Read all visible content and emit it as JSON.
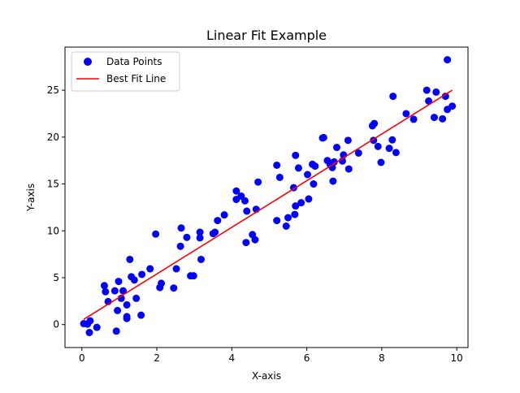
{
  "chart_data": {
    "type": "scatter",
    "title": "Linear Fit Example",
    "xlabel": "X-axis",
    "ylabel": "Y-axis",
    "xlim": [
      -0.45,
      10.3
    ],
    "ylim": [
      -2.45,
      29.6
    ],
    "xticks": [
      0,
      2,
      4,
      6,
      8,
      10
    ],
    "yticks": [
      0,
      5,
      10,
      15,
      20,
      25
    ],
    "xtick_labels": [
      "0",
      "2",
      "4",
      "6",
      "8",
      "10"
    ],
    "ytick_labels": [
      "0",
      "5",
      "10",
      "15",
      "20",
      "25"
    ],
    "grid": false,
    "legend_position": "top-left",
    "series": [
      {
        "name": "Data Points",
        "kind": "scatter",
        "color": "#0000ff",
        "points": [
          [
            0.05,
            0.1
          ],
          [
            0.15,
            0.05
          ],
          [
            0.2,
            -0.85
          ],
          [
            0.22,
            0.4
          ],
          [
            0.4,
            -0.3
          ],
          [
            0.6,
            4.15
          ],
          [
            0.63,
            3.5
          ],
          [
            0.7,
            2.45
          ],
          [
            0.88,
            3.6
          ],
          [
            0.92,
            -0.7
          ],
          [
            0.95,
            1.5
          ],
          [
            0.98,
            4.6
          ],
          [
            1.05,
            2.8
          ],
          [
            1.1,
            3.6
          ],
          [
            1.2,
            2.1
          ],
          [
            1.2,
            0.85
          ],
          [
            1.2,
            0.65
          ],
          [
            1.28,
            6.95
          ],
          [
            1.32,
            5.1
          ],
          [
            1.4,
            4.75
          ],
          [
            1.45,
            2.8
          ],
          [
            1.6,
            5.35
          ],
          [
            1.58,
            1.0
          ],
          [
            1.82,
            5.95
          ],
          [
            1.97,
            9.65
          ],
          [
            2.08,
            3.95
          ],
          [
            2.12,
            4.4
          ],
          [
            2.45,
            3.9
          ],
          [
            2.52,
            5.95
          ],
          [
            2.63,
            8.35
          ],
          [
            2.65,
            10.3
          ],
          [
            2.8,
            9.3
          ],
          [
            2.9,
            5.2
          ],
          [
            2.98,
            5.2
          ],
          [
            3.15,
            9.25
          ],
          [
            3.15,
            9.85
          ],
          [
            3.18,
            6.95
          ],
          [
            3.5,
            9.7
          ],
          [
            3.55,
            9.85
          ],
          [
            3.62,
            11.1
          ],
          [
            3.8,
            11.7
          ],
          [
            4.12,
            14.25
          ],
          [
            4.12,
            13.35
          ],
          [
            4.25,
            13.7
          ],
          [
            4.35,
            13.2
          ],
          [
            4.4,
            12.1
          ],
          [
            4.38,
            8.75
          ],
          [
            4.55,
            9.6
          ],
          [
            4.62,
            9.05
          ],
          [
            4.65,
            12.3
          ],
          [
            4.7,
            15.2
          ],
          [
            5.2,
            11.1
          ],
          [
            5.2,
            17.0
          ],
          [
            5.28,
            15.7
          ],
          [
            5.45,
            10.5
          ],
          [
            5.5,
            11.4
          ],
          [
            5.65,
            14.6
          ],
          [
            5.68,
            11.75
          ],
          [
            5.7,
            18.05
          ],
          [
            5.7,
            12.65
          ],
          [
            5.78,
            16.7
          ],
          [
            5.85,
            13.0
          ],
          [
            6.02,
            16.0
          ],
          [
            6.05,
            13.4
          ],
          [
            6.15,
            17.1
          ],
          [
            6.18,
            15.0
          ],
          [
            6.22,
            16.9
          ],
          [
            6.42,
            19.9
          ],
          [
            6.45,
            19.95
          ],
          [
            6.55,
            17.5
          ],
          [
            6.62,
            17.1
          ],
          [
            6.68,
            16.75
          ],
          [
            6.7,
            15.3
          ],
          [
            6.73,
            17.35
          ],
          [
            6.8,
            18.9
          ],
          [
            6.95,
            17.45
          ],
          [
            6.98,
            18.1
          ],
          [
            7.1,
            19.65
          ],
          [
            7.12,
            16.6
          ],
          [
            7.38,
            18.3
          ],
          [
            7.75,
            21.2
          ],
          [
            7.8,
            21.45
          ],
          [
            7.78,
            19.65
          ],
          [
            7.9,
            19.0
          ],
          [
            7.98,
            17.3
          ],
          [
            8.2,
            18.8
          ],
          [
            8.28,
            19.7
          ],
          [
            8.3,
            24.35
          ],
          [
            8.38,
            18.35
          ],
          [
            8.65,
            22.5
          ],
          [
            8.85,
            21.9
          ],
          [
            9.2,
            25.0
          ],
          [
            9.25,
            23.85
          ],
          [
            9.45,
            24.8
          ],
          [
            9.4,
            22.1
          ],
          [
            9.62,
            21.95
          ],
          [
            9.7,
            24.35
          ],
          [
            9.75,
            28.25
          ],
          [
            9.75,
            22.95
          ],
          [
            9.88,
            23.3
          ]
        ]
      },
      {
        "name": "Best Fit Line",
        "kind": "line",
        "color": "#ff0000",
        "x": [
          0.05,
          9.88
        ],
        "y": [
          0.55,
          25.0
        ]
      }
    ]
  }
}
